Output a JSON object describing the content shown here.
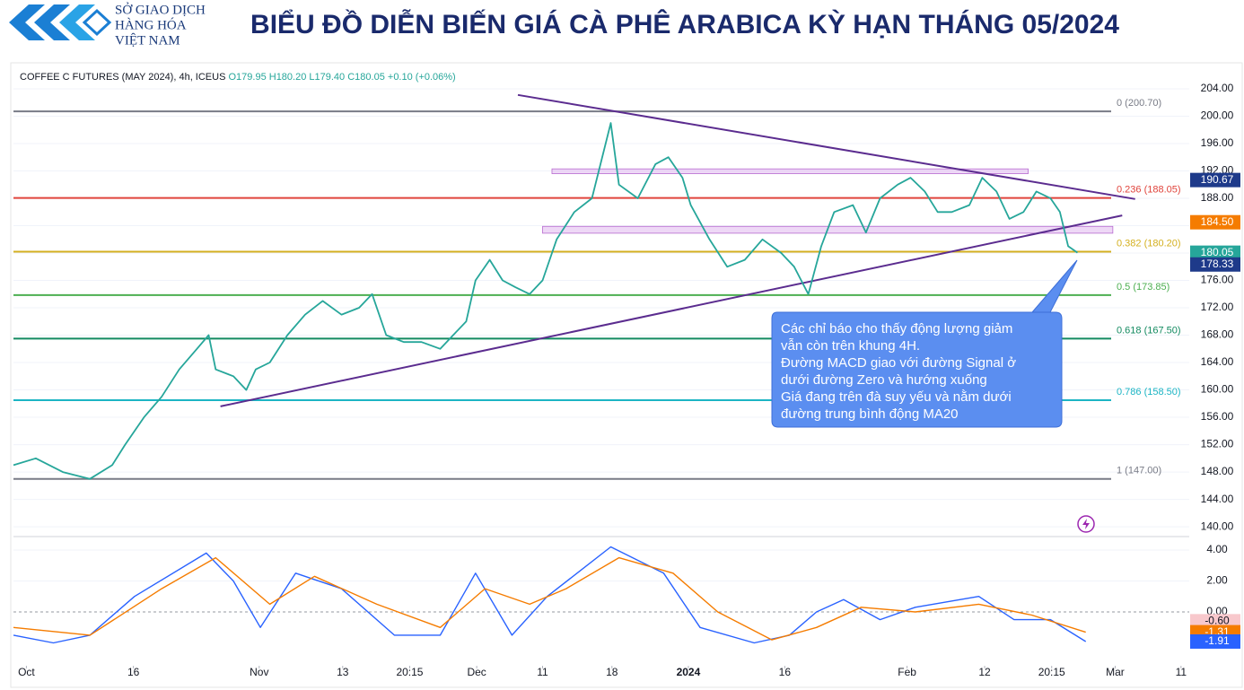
{
  "header": {
    "logo_lines": [
      "SỞ GIAO DỊCH",
      "HÀNG HÓA",
      "VIỆT NAM"
    ],
    "title": "BIỂU ĐỒ DIỄN BIẾN GIÁ CÀ PHÊ ARABICA KỲ HẠN THÁNG 05/2024"
  },
  "legend": {
    "symbol": "COFFEE C FUTURES (MAY 2024), 4h, ICEUS",
    "open": "O179.95",
    "high": "H180.20",
    "low": "L179.40",
    "close": "C180.05",
    "change": "+0.10 (+0.06%)"
  },
  "annotation": [
    "Các chỉ báo cho thấy động lượng giảm",
    "vẫn còn trên khung 4H.",
    "Đường MACD giao với đường Signal ở",
    "dưới đường Zero và hướng xuống",
    "Giá đang trên đà suy yếu và nằm dưới",
    "đường trung bình động MA20"
  ],
  "chart_data": [
    {
      "type": "line",
      "xlim": [
        0,
        100
      ],
      "ylim": [
        138.7,
        207.8
      ],
      "yticks": [
        {
          "value": 140,
          "label": "140.00"
        },
        {
          "value": 144,
          "label": "144.00"
        },
        {
          "value": 148,
          "label": "148.00"
        },
        {
          "value": 152,
          "label": "152.00"
        },
        {
          "value": 156,
          "label": "156.00"
        },
        {
          "value": 160,
          "label": "160.00"
        },
        {
          "value": 164,
          "label": "164.00"
        },
        {
          "value": 168,
          "label": "168.00"
        },
        {
          "value": 172,
          "label": "172.00"
        },
        {
          "value": 176,
          "label": "176.00"
        },
        {
          "value": 180,
          "label": "180.00"
        },
        {
          "value": 184,
          "label": "184.00"
        },
        {
          "value": 188,
          "label": "188.00"
        },
        {
          "value": 192,
          "label": "192.00"
        },
        {
          "value": 196,
          "label": "196.00"
        },
        {
          "value": 200,
          "label": "200.00"
        },
        {
          "value": 204,
          "label": "204.00"
        }
      ],
      "x": [
        0,
        1.9,
        4.2,
        6.5,
        8.4,
        9.5,
        11.1,
        12.6,
        14.1,
        15.6,
        16.6,
        17.2,
        18.7,
        19.8,
        20.6,
        21.8,
        23.3,
        24.8,
        26.3,
        27.9,
        29.4,
        30.5,
        31.7,
        33.2,
        34.7,
        36.3,
        37.4,
        38.5,
        39.3,
        40.5,
        41.6,
        42.7,
        43.9,
        45.0,
        46.2,
        47.7,
        49.2,
        50.8,
        51.5,
        53.1,
        54.6,
        55.7,
        56.9,
        57.6,
        59.2,
        60.7,
        62.2,
        63.7,
        65.3,
        66.4,
        67.6,
        68.7,
        69.8,
        71.4,
        72.5,
        73.7,
        75.2,
        76.3,
        77.5,
        78.6,
        79.8,
        81.3,
        82.4,
        83.6,
        84.7,
        85.9,
        87.0,
        88.2,
        89.0,
        89.7,
        90.5
      ],
      "series": [
        {
          "color": "#26a69a",
          "values": [
            149,
            150,
            148,
            147,
            149,
            152,
            156,
            159,
            163,
            166,
            168,
            163,
            162,
            160,
            163,
            164,
            168,
            171,
            173,
            171,
            172,
            174,
            168,
            167,
            167,
            166,
            168,
            170,
            176,
            179,
            176,
            175,
            174,
            176,
            182,
            186,
            188,
            199,
            190,
            188,
            193,
            194,
            191,
            187,
            182,
            178,
            179,
            182,
            180,
            178,
            174,
            181,
            186,
            187,
            183,
            188,
            190,
            191,
            189,
            186,
            186,
            187,
            191,
            189,
            185,
            186,
            189,
            188,
            186,
            181,
            180.05
          ]
        }
      ],
      "levels": [
        {
          "label": "0 (200.70)",
          "value": 200.7,
          "color": "#787b86"
        },
        {
          "label": "0.236 (188.05)",
          "value": 188.05,
          "color": "#e0443c"
        },
        {
          "label": "0.382 (180.20)",
          "value": 180.2,
          "color": "#d4b020"
        },
        {
          "label": "0.5 (173.85)",
          "value": 173.85,
          "color": "#4caf50"
        },
        {
          "label": "0.618 (167.50)",
          "value": 167.5,
          "color": "#138a60"
        },
        {
          "label": "0.786 (158.50)",
          "value": 158.5,
          "color": "#1cb5c4"
        },
        {
          "label": "1 (147.00)",
          "value": 147,
          "color": "#787b86"
        }
      ],
      "trendlines": [
        {
          "color": "#5b2c8f",
          "x": [
            42.9,
            95.4
          ],
          "values": [
            203.1,
            187.9
          ]
        },
        {
          "color": "#5b2c8f",
          "x": [
            17.6,
            94.3
          ],
          "values": [
            157.6,
            185.5
          ]
        }
      ],
      "zones": [
        {
          "color": "#d9a8ec",
          "x": [
            45.8,
            86.3
          ],
          "values": [
            192.3,
            191.6
          ]
        },
        {
          "color": "#d9a8ec",
          "x": [
            45.0,
            93.5
          ],
          "values": [
            183.9,
            182.9
          ]
        }
      ],
      "markers": {
        "values": [
          190.67,
          184.5,
          180.05,
          178.33
        ],
        "value_labels": [
          "190.67",
          "184.50",
          "180.05",
          "178.33"
        ],
        "colors": [
          "#1e3a8a",
          "#f57c00",
          "#26a69a",
          "#1e3a8a"
        ]
      }
    },
    {
      "type": "line",
      "xlim": [
        0,
        100
      ],
      "ylim": [
        -3.36,
        4.75
      ],
      "yticks": [
        {
          "value": 0,
          "label": "0.00"
        },
        {
          "value": 2,
          "label": "2.00"
        },
        {
          "value": 4,
          "label": "4.00"
        }
      ],
      "xticks": [
        {
          "value": 1.1,
          "label": "Oct"
        },
        {
          "value": 10.2,
          "label": "16"
        },
        {
          "value": 20.9,
          "label": "Nov"
        },
        {
          "value": 28.0,
          "label": "13"
        },
        {
          "value": 33.7,
          "label": "20:15"
        },
        {
          "value": 39.4,
          "label": "Dec"
        },
        {
          "value": 45.0,
          "label": "11"
        },
        {
          "value": 50.9,
          "label": "18"
        },
        {
          "value": 57.4,
          "label": "2024"
        },
        {
          "value": 65.6,
          "label": "16"
        },
        {
          "value": 76.0,
          "label": "Feb"
        },
        {
          "value": 82.6,
          "label": "12"
        },
        {
          "value": 88.3,
          "label": "20:15"
        },
        {
          "value": 93.7,
          "label": "Mar"
        },
        {
          "value": 99.3,
          "label": "11"
        }
      ],
      "series": [
        {
          "color": "#2962ff",
          "x": [
            0,
            3.4,
            6.5,
            10.3,
            16.4,
            18.7,
            21.0,
            24.0,
            27.9,
            32.4,
            36.3,
            39.3,
            42.4,
            45.4,
            50.8,
            55.3,
            58.4,
            63.0,
            66.0,
            68.3,
            70.6,
            73.7,
            76.7,
            82.1,
            85.1,
            88.2,
            91.2
          ],
          "values": [
            -1.5,
            -2,
            -1.5,
            1,
            3.8,
            2,
            -1,
            2.5,
            1.5,
            -1.5,
            -1.5,
            2.5,
            -1.5,
            1,
            4.2,
            2.5,
            -1,
            -2,
            -1.5,
            0,
            0.8,
            -0.5,
            0.3,
            1,
            -0.5,
            -0.5,
            -1.91
          ]
        },
        {
          "color": "#f57c00",
          "x": [
            0,
            6.5,
            12.6,
            17.2,
            21.8,
            25.6,
            30.9,
            36.3,
            40.1,
            43.9,
            47.0,
            51.5,
            56.1,
            59.9,
            64.5,
            68.3,
            72.1,
            76.7,
            82.1,
            86.6,
            91.2
          ],
          "values": [
            -1,
            -1.5,
            1.5,
            3.5,
            0.5,
            2.3,
            0.5,
            -1,
            1.5,
            0.5,
            1.5,
            3.5,
            2.5,
            0,
            -1.8,
            -1,
            0.3,
            0,
            0.5,
            -0.2,
            -1.31
          ]
        }
      ],
      "markers": {
        "values": [
          -0.6,
          -1.31,
          -1.91
        ],
        "value_labels": [
          "-0.60",
          "-1.31",
          "-1.91"
        ],
        "colors": [
          "#f8c8cc",
          "#f57c00",
          "#2962ff"
        ]
      }
    }
  ]
}
